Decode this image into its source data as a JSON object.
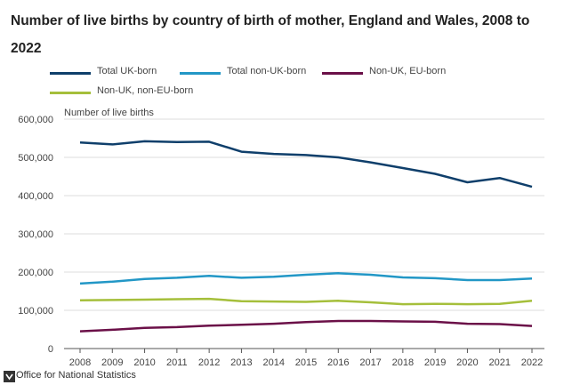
{
  "title": "Number of live births by country of birth of mother, England and Wales, 2008 to 2022",
  "source": "Office for National Statistics",
  "chart_data": {
    "type": "line",
    "title": "Number of live births by country of birth of mother, England and Wales, 2008 to 2022",
    "xlabel": "",
    "ylabel": "Number of live births",
    "ylim": [
      0,
      600000
    ],
    "yticks": [
      0,
      100000,
      200000,
      300000,
      400000,
      500000,
      600000
    ],
    "ytick_labels": [
      "0",
      "100,000",
      "200,000",
      "300,000",
      "400,000",
      "500,000",
      "600,000"
    ],
    "x": [
      "2008",
      "2009",
      "2010",
      "2011",
      "2012",
      "2013",
      "2014",
      "2015",
      "2016",
      "2017",
      "2018",
      "2019",
      "2020",
      "2021",
      "2022"
    ],
    "grid": true,
    "legend_position": "top-left",
    "series": [
      {
        "name": "Total UK-born",
        "color": "#0f3f6b",
        "values": [
          539000,
          534000,
          542000,
          540000,
          541000,
          515000,
          509000,
          506000,
          500000,
          487000,
          472000,
          457000,
          435000,
          446000,
          423000
        ]
      },
      {
        "name": "Total non-UK-born",
        "color": "#2297c6",
        "values": [
          170000,
          175000,
          182000,
          185000,
          190000,
          185000,
          188000,
          193000,
          197000,
          193000,
          186000,
          184000,
          179000,
          179000,
          183000
        ]
      },
      {
        "name": "Non-UK, EU-born",
        "color": "#6b1048",
        "values": [
          45000,
          49000,
          54000,
          56000,
          60000,
          62000,
          65000,
          69000,
          72000,
          72000,
          71000,
          70000,
          65000,
          64000,
          59000
        ]
      },
      {
        "name": "Non-UK, non-EU-born",
        "color": "#a5bf3b",
        "values": [
          126000,
          127000,
          128000,
          129000,
          130000,
          124000,
          123000,
          122000,
          125000,
          121000,
          116000,
          117000,
          116000,
          117000,
          125000
        ]
      }
    ]
  }
}
